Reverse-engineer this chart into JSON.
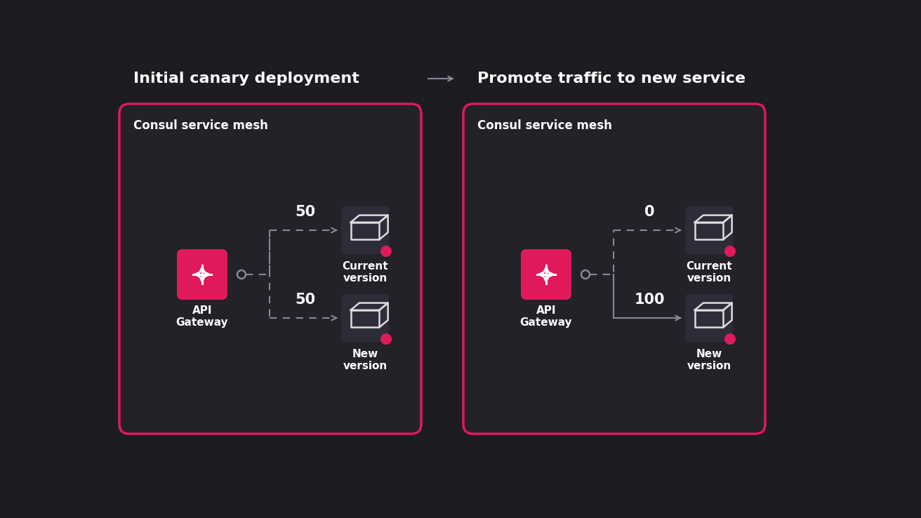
{
  "bg_color": "#1c1c21",
  "panel_bg": "#222228",
  "panel_border": "#e01a5a",
  "box_bg": "#2d2d3a",
  "pink": "#e01a5a",
  "white": "#ffffff",
  "arrow_color": "#888899",
  "dot_color": "#888899",
  "title_left": "Initial canary deployment",
  "title_right": "Promote traffic to new service",
  "panel_label": "Consul service mesh",
  "gateway_label": "API\nGateway",
  "current_label": "Current\nversion",
  "new_label": "New\nversion",
  "left_traffic_top": "50",
  "left_traffic_bottom": "50",
  "right_traffic_top": "0",
  "right_traffic_bottom": "100",
  "fig_w": 13.12,
  "fig_h": 7.38,
  "dpi": 100
}
